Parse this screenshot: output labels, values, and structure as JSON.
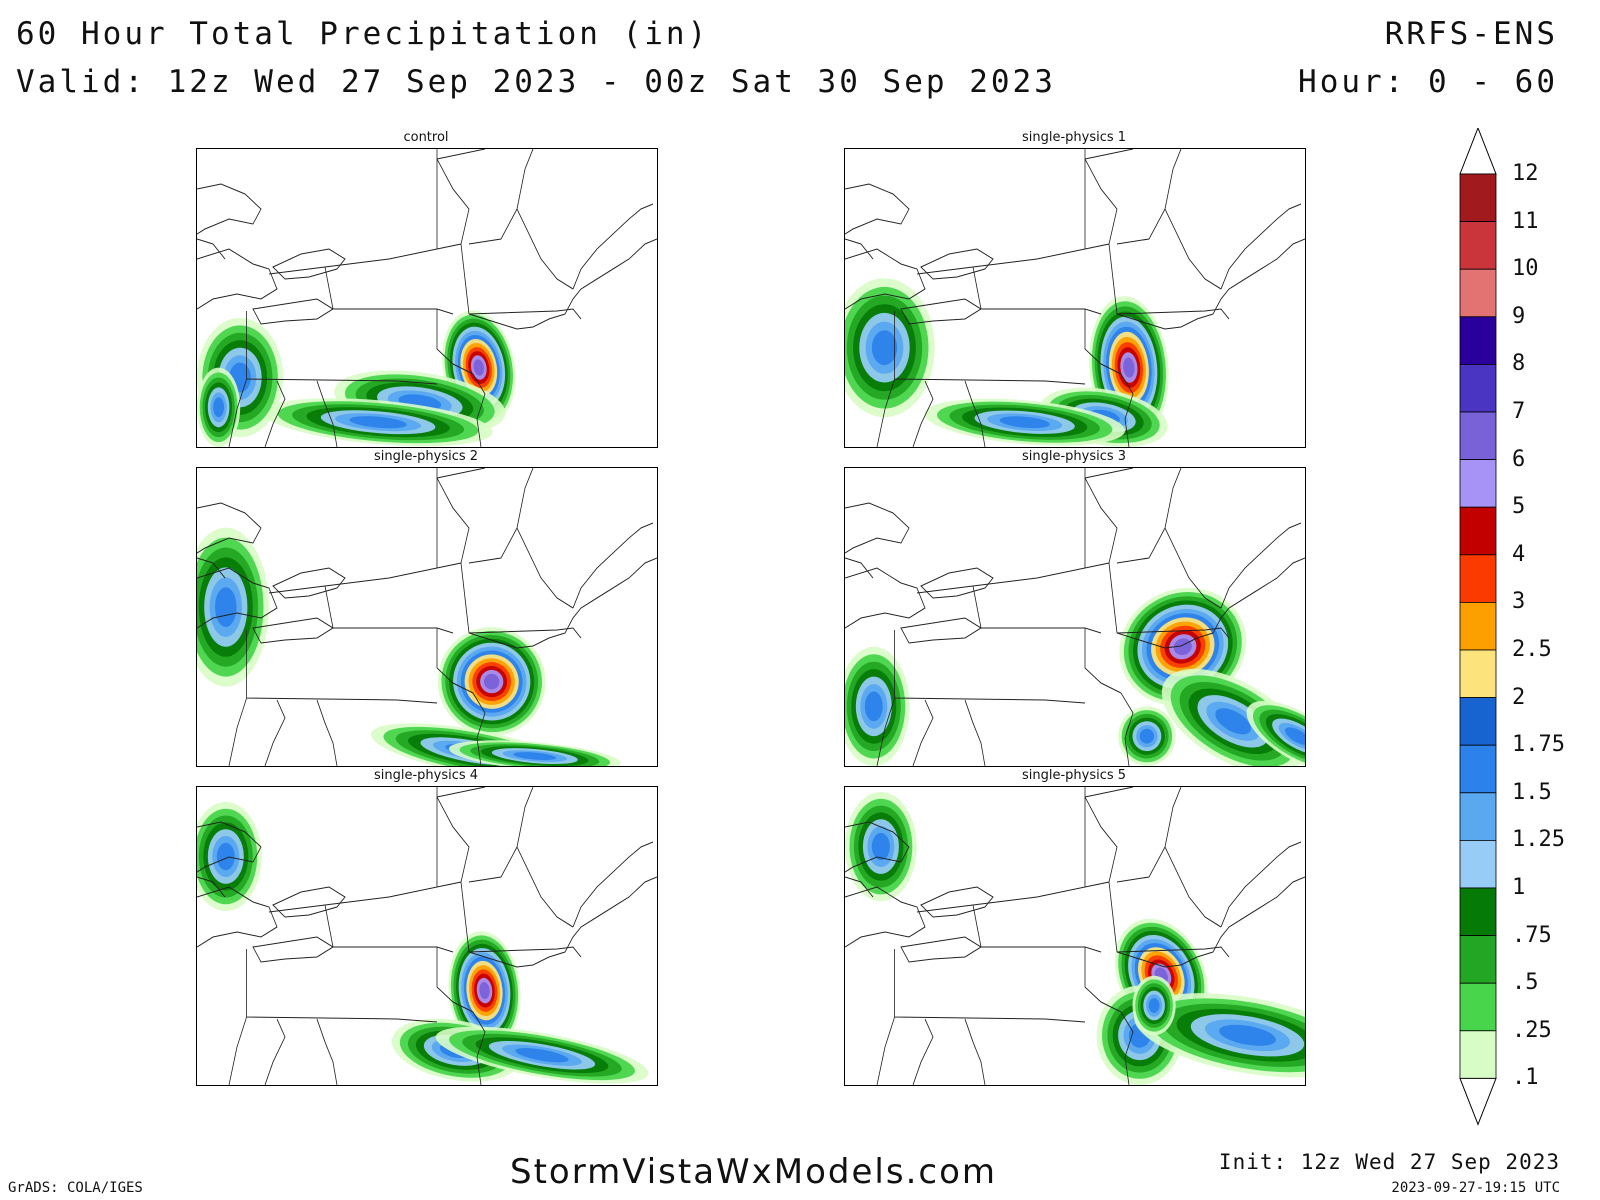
{
  "header": {
    "title": "60 Hour Total Precipitation (in)",
    "valid": "Valid: 12z Wed 27 Sep 2023 - 00z Sat 30 Sep 2023",
    "model": "RRFS-ENS",
    "hours": "Hour: 0 - 60"
  },
  "panels": [
    {
      "title": "control"
    },
    {
      "title": "single-physics 1"
    },
    {
      "title": "single-physics 2"
    },
    {
      "title": "single-physics 3"
    },
    {
      "title": "single-physics 4"
    },
    {
      "title": "single-physics 5"
    }
  ],
  "colorbar": {
    "labels": [
      "12",
      "11",
      "10",
      "9",
      "8",
      "7",
      "6",
      "5",
      "4",
      "3",
      "2.5",
      "2",
      "1.75",
      "1.5",
      "1.25",
      "1",
      ".75",
      ".5",
      ".25",
      ".1"
    ],
    "colors": [
      "#a11a1e",
      "#c9353a",
      "#e37373",
      "#2a009c",
      "#4a34c2",
      "#7961d8",
      "#a792f5",
      "#c30000",
      "#fb3a00",
      "#fca000",
      "#fde37c",
      "#1763d0",
      "#2c82ea",
      "#59a8f0",
      "#96ccf6",
      "#067a06",
      "#23a623",
      "#48d54b",
      "#d8fcc6"
    ]
  },
  "footer": {
    "grads": "GrADS: COLA/IGES",
    "site": "StormVistaWxModels.com",
    "init": "Init: 12z Wed 27 Sep 2023",
    "timestamp": "2023-09-27-19:15 UTC"
  }
}
